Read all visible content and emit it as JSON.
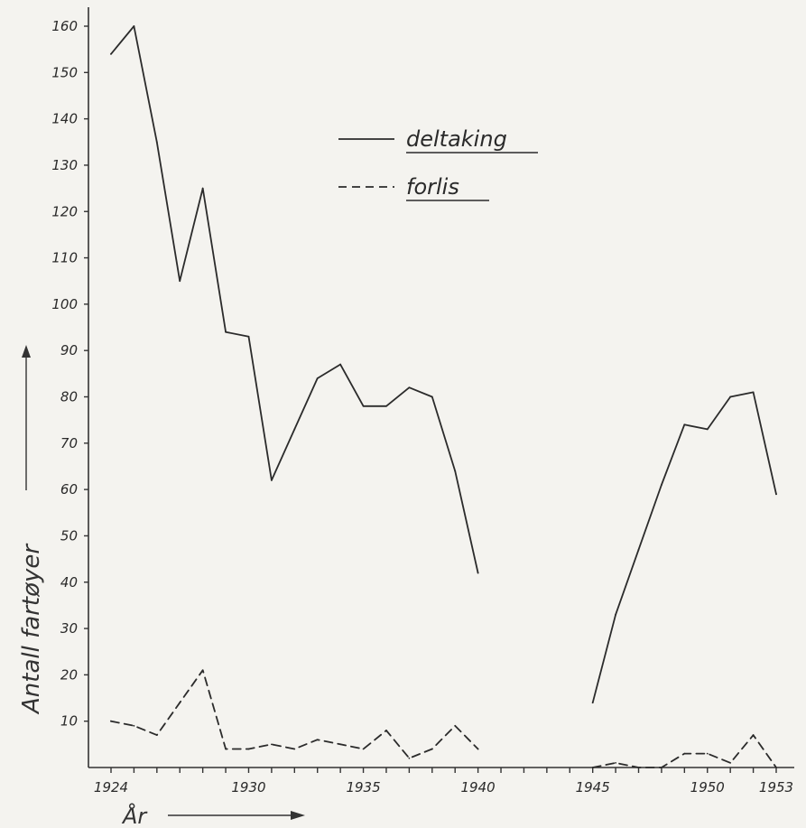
{
  "chart_data": {
    "type": "line",
    "xlabel": "År",
    "ylabel": "Antall fartøyer",
    "xlim": [
      1924,
      1953
    ],
    "ylim": [
      0,
      160
    ],
    "x_ticks": [
      1924,
      1930,
      1935,
      1940,
      1945,
      1950,
      1953
    ],
    "y_ticks": [
      10,
      20,
      30,
      40,
      50,
      60,
      70,
      80,
      90,
      100,
      110,
      120,
      130,
      140,
      150,
      160
    ],
    "grid": false,
    "legend_position": "top-center",
    "series": [
      {
        "name": "deltaking",
        "style": "solid",
        "segments": [
          {
            "x": [
              1924,
              1925,
              1926,
              1927,
              1928,
              1929,
              1930,
              1931,
              1932,
              1933,
              1934,
              1935,
              1936,
              1937,
              1938,
              1939,
              1940
            ],
            "y": [
              154,
              160,
              135,
              105,
              125,
              94,
              93,
              62,
              73,
              84,
              87,
              78,
              78,
              82,
              80,
              64,
              42
            ]
          },
          {
            "x": [
              1945,
              1946,
              1947,
              1948,
              1949,
              1950,
              1951,
              1952,
              1953
            ],
            "y": [
              14,
              33,
              47,
              61,
              74,
              73,
              80,
              81,
              59
            ]
          }
        ]
      },
      {
        "name": "forlis",
        "style": "dashed",
        "segments": [
          {
            "x": [
              1924,
              1925,
              1926,
              1927,
              1928,
              1929,
              1930,
              1931,
              1932,
              1933,
              1934,
              1935,
              1936,
              1937,
              1938,
              1939,
              1940
            ],
            "y": [
              10,
              9,
              7,
              14,
              21,
              4,
              4,
              5,
              4,
              6,
              5,
              4,
              8,
              2,
              4,
              9,
              4
            ]
          },
          {
            "x": [
              1945,
              1946,
              1947,
              1948,
              1949,
              1950,
              1951,
              1952,
              1953
            ],
            "y": [
              0,
              1,
              0,
              0,
              3,
              3,
              1,
              7,
              0
            ]
          }
        ]
      }
    ]
  }
}
